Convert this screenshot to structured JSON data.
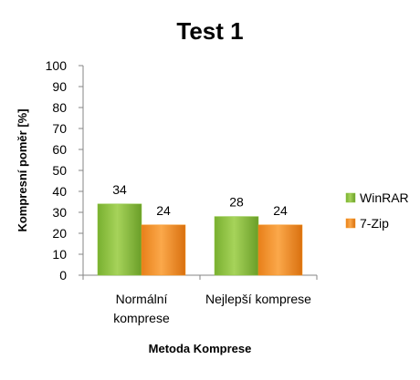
{
  "chart_data": {
    "type": "bar",
    "title": "Test 1",
    "xlabel": "Metoda Komprese",
    "ylabel": "Kompresní poměr [%]",
    "ylim": [
      0,
      100
    ],
    "yticks": [
      0,
      10,
      20,
      30,
      40,
      50,
      60,
      70,
      80,
      90,
      100
    ],
    "grid": false,
    "legend_position": "right",
    "categories": [
      [
        "Normální",
        "komprese"
      ],
      [
        "Nejlepší komprese"
      ]
    ],
    "series": [
      {
        "name": "WinRAR",
        "values": [
          34,
          28
        ],
        "color": "#8DC63F"
      },
      {
        "name": "7-Zip",
        "values": [
          24,
          24
        ],
        "color": "#F7941D"
      }
    ]
  }
}
